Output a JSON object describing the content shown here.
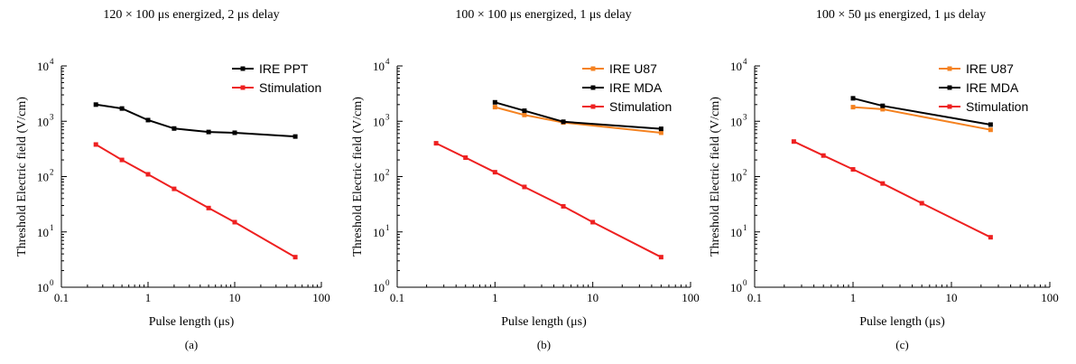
{
  "chart_data": [
    {
      "type": "line",
      "panel_label": "(a)",
      "title": "120 × 100 μs energized, 2 μs delay",
      "xlabel": "Pulse length (μs)",
      "ylabel": "Threshold Electric field (V/cm)",
      "xscale": "log",
      "yscale": "log",
      "xlim": [
        0.1,
        100
      ],
      "ylim": [
        1,
        10000
      ],
      "xticks": [
        "0.1",
        "1",
        "10",
        "100"
      ],
      "yticks": [
        {
          "base": "10",
          "exp": "0",
          "value": 1
        },
        {
          "base": "10",
          "exp": "1",
          "value": 10
        },
        {
          "base": "10",
          "exp": "2",
          "value": 100
        },
        {
          "base": "10",
          "exp": "3",
          "value": 1000
        },
        {
          "base": "10",
          "exp": "4",
          "value": 10000
        }
      ],
      "legend_position": "top-right",
      "series": [
        {
          "name": "IRE PPT",
          "color": "#000000",
          "x": [
            0.25,
            0.5,
            1,
            2,
            5,
            10,
            50
          ],
          "y": [
            2000,
            1700,
            1050,
            740,
            640,
            620,
            530
          ]
        },
        {
          "name": "Stimulation",
          "color": "#ee2020",
          "x": [
            0.25,
            0.5,
            1,
            2,
            5,
            10,
            50
          ],
          "y": [
            380,
            200,
            110,
            60,
            27,
            15,
            3.5
          ]
        }
      ]
    },
    {
      "type": "line",
      "panel_label": "(b)",
      "title": "100 × 100 μs energized, 1 μs delay",
      "xlabel": "Pulse length (μs)",
      "ylabel": "Threshold Electric field (V/cm)",
      "xscale": "log",
      "yscale": "log",
      "xlim": [
        0.1,
        100
      ],
      "ylim": [
        1,
        10000
      ],
      "xticks": [
        "0.1",
        "1",
        "10",
        "100"
      ],
      "yticks": [
        {
          "base": "10",
          "exp": "0",
          "value": 1
        },
        {
          "base": "10",
          "exp": "1",
          "value": 10
        },
        {
          "base": "10",
          "exp": "2",
          "value": 100
        },
        {
          "base": "10",
          "exp": "3",
          "value": 1000
        },
        {
          "base": "10",
          "exp": "4",
          "value": 10000
        }
      ],
      "legend_position": "top-right",
      "series": [
        {
          "name": "IRE U87",
          "color": "#f58220",
          "x": [
            1,
            2,
            5,
            50
          ],
          "y": [
            1800,
            1300,
            950,
            620
          ]
        },
        {
          "name": "IRE MDA",
          "color": "#000000",
          "x": [
            1,
            2,
            5,
            50
          ],
          "y": [
            2200,
            1550,
            980,
            730
          ]
        },
        {
          "name": "Stimulation",
          "color": "#ee2020",
          "x": [
            0.25,
            0.5,
            1,
            2,
            5,
            10,
            50
          ],
          "y": [
            400,
            220,
            120,
            65,
            29,
            15,
            3.5
          ]
        }
      ]
    },
    {
      "type": "line",
      "panel_label": "(c)",
      "title": "100 × 50 μs energized, 1 μs delay",
      "xlabel": "Pulse length (μs)",
      "ylabel": "Threshold Electric field (V/cm)",
      "xscale": "log",
      "yscale": "log",
      "xlim": [
        0.1,
        100
      ],
      "ylim": [
        1,
        10000
      ],
      "xticks": [
        "0.1",
        "1",
        "10",
        "100"
      ],
      "yticks": [
        {
          "base": "10",
          "exp": "0",
          "value": 1
        },
        {
          "base": "10",
          "exp": "1",
          "value": 10
        },
        {
          "base": "10",
          "exp": "2",
          "value": 100
        },
        {
          "base": "10",
          "exp": "3",
          "value": 1000
        },
        {
          "base": "10",
          "exp": "4",
          "value": 10000
        }
      ],
      "legend_position": "top-right",
      "series": [
        {
          "name": "IRE U87",
          "color": "#f58220",
          "x": [
            1,
            2,
            25
          ],
          "y": [
            1800,
            1650,
            700
          ]
        },
        {
          "name": "IRE MDA",
          "color": "#000000",
          "x": [
            1,
            2,
            25
          ],
          "y": [
            2600,
            1900,
            870
          ]
        },
        {
          "name": "Stimulation",
          "color": "#ee2020",
          "x": [
            0.25,
            0.5,
            1,
            2,
            5,
            25
          ],
          "y": [
            430,
            240,
            135,
            75,
            33,
            8
          ]
        }
      ]
    }
  ]
}
